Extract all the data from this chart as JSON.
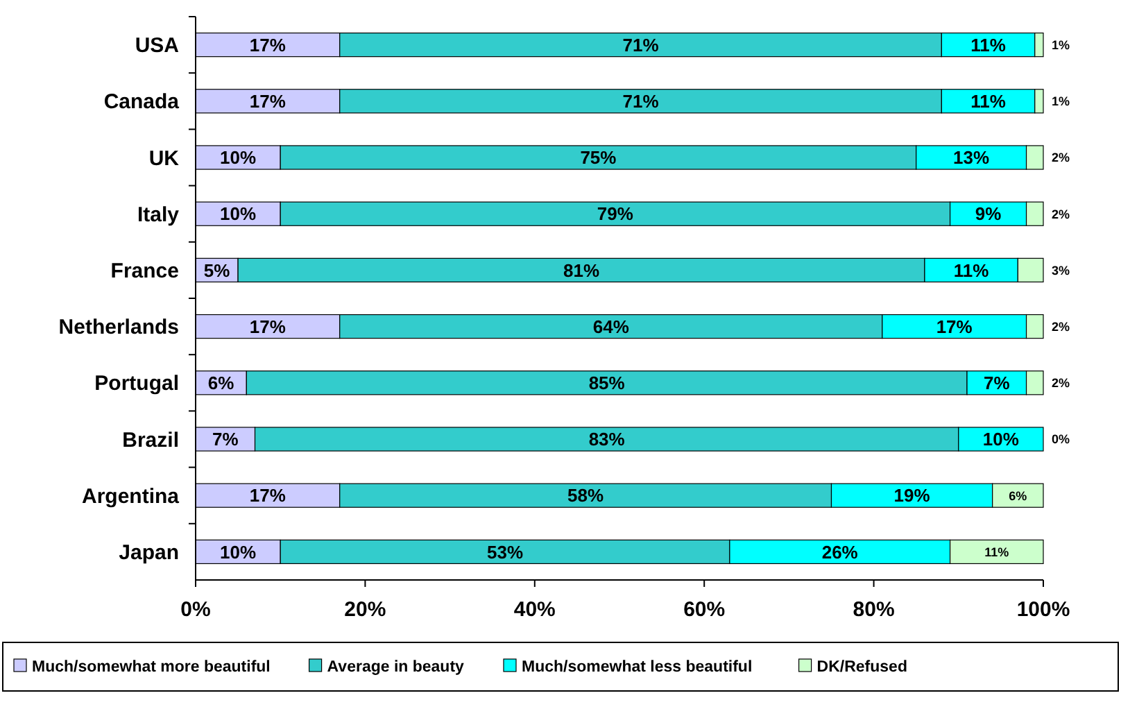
{
  "chart_data": {
    "type": "bar",
    "orientation": "horizontal",
    "stacked": true,
    "categories": [
      "USA",
      "Canada",
      "UK",
      "Italy",
      "France",
      "Netherlands",
      "Portugal",
      "Brazil",
      "Argentina",
      "Japan"
    ],
    "series": [
      {
        "name": "Much/somewhat more beautiful",
        "color": "#ccccff",
        "values": [
          17,
          17,
          10,
          10,
          5,
          17,
          6,
          7,
          17,
          10
        ],
        "value_labels": [
          "17%",
          "17%",
          "10%",
          "10%",
          "5%",
          "17%",
          "6%",
          "7%",
          "17%",
          "10%"
        ]
      },
      {
        "name": "Average in beauty",
        "color": "#33cccc",
        "values": [
          71,
          71,
          75,
          79,
          81,
          64,
          85,
          83,
          58,
          53
        ],
        "value_labels": [
          "71%",
          "71%",
          "75%",
          "79%",
          "81%",
          "64%",
          "85%",
          "83%",
          "58%",
          "53%"
        ]
      },
      {
        "name": "Much/somewhat less beautiful",
        "color": "#00ffff",
        "values": [
          11,
          11,
          13,
          9,
          11,
          17,
          7,
          10,
          19,
          26
        ],
        "value_labels": [
          "11%",
          "11%",
          "13%",
          "9%",
          "11%",
          "17%",
          "7%",
          "10%",
          "19%",
          "26%"
        ]
      },
      {
        "name": "DK/Refused",
        "color": "#ccffcc",
        "values": [
          1,
          1,
          2,
          2,
          3,
          2,
          2,
          0,
          6,
          11
        ],
        "value_labels": [
          "1%",
          "1%",
          "2%",
          "2%",
          "3%",
          "2%",
          "2%",
          "0%",
          "6%",
          "11%"
        ]
      }
    ],
    "xlim": [
      0,
      100
    ],
    "xticks": [
      {
        "value": 0,
        "label": "0%"
      },
      {
        "value": 20,
        "label": "20%"
      },
      {
        "value": 40,
        "label": "40%"
      },
      {
        "value": 60,
        "label": "60%"
      },
      {
        "value": 80,
        "label": "80%"
      },
      {
        "value": 100,
        "label": "100%"
      }
    ],
    "grid": false,
    "legend": "bottom"
  }
}
